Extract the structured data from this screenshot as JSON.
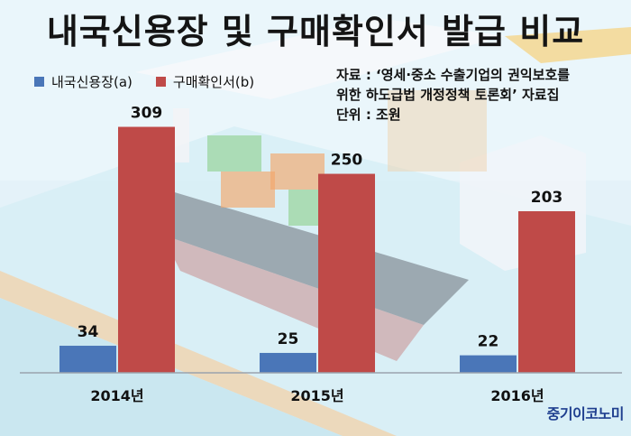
{
  "chart_data": {
    "type": "bar",
    "title": "내국신용장 및 구매확인서 발급 비교",
    "categories": [
      "2014년",
      "2015년",
      "2016년"
    ],
    "series": [
      {
        "name": "내국신용장(a)",
        "values": [
          34,
          25,
          22
        ],
        "color": "#4a76b8"
      },
      {
        "name": "구매확인서(b)",
        "values": [
          309,
          250,
          203
        ],
        "color": "#bf4a48"
      }
    ],
    "ylim": [
      0,
      330
    ],
    "legend": "top-left",
    "grid": false
  },
  "source": {
    "line1": "자료 : ‘영세·중소 수출기업의 권익보호를",
    "line2": "위한 하도급법 개정정책 토론회’ 자료집",
    "line3": "단위 : 조원"
  },
  "logo": "중기이코노미"
}
